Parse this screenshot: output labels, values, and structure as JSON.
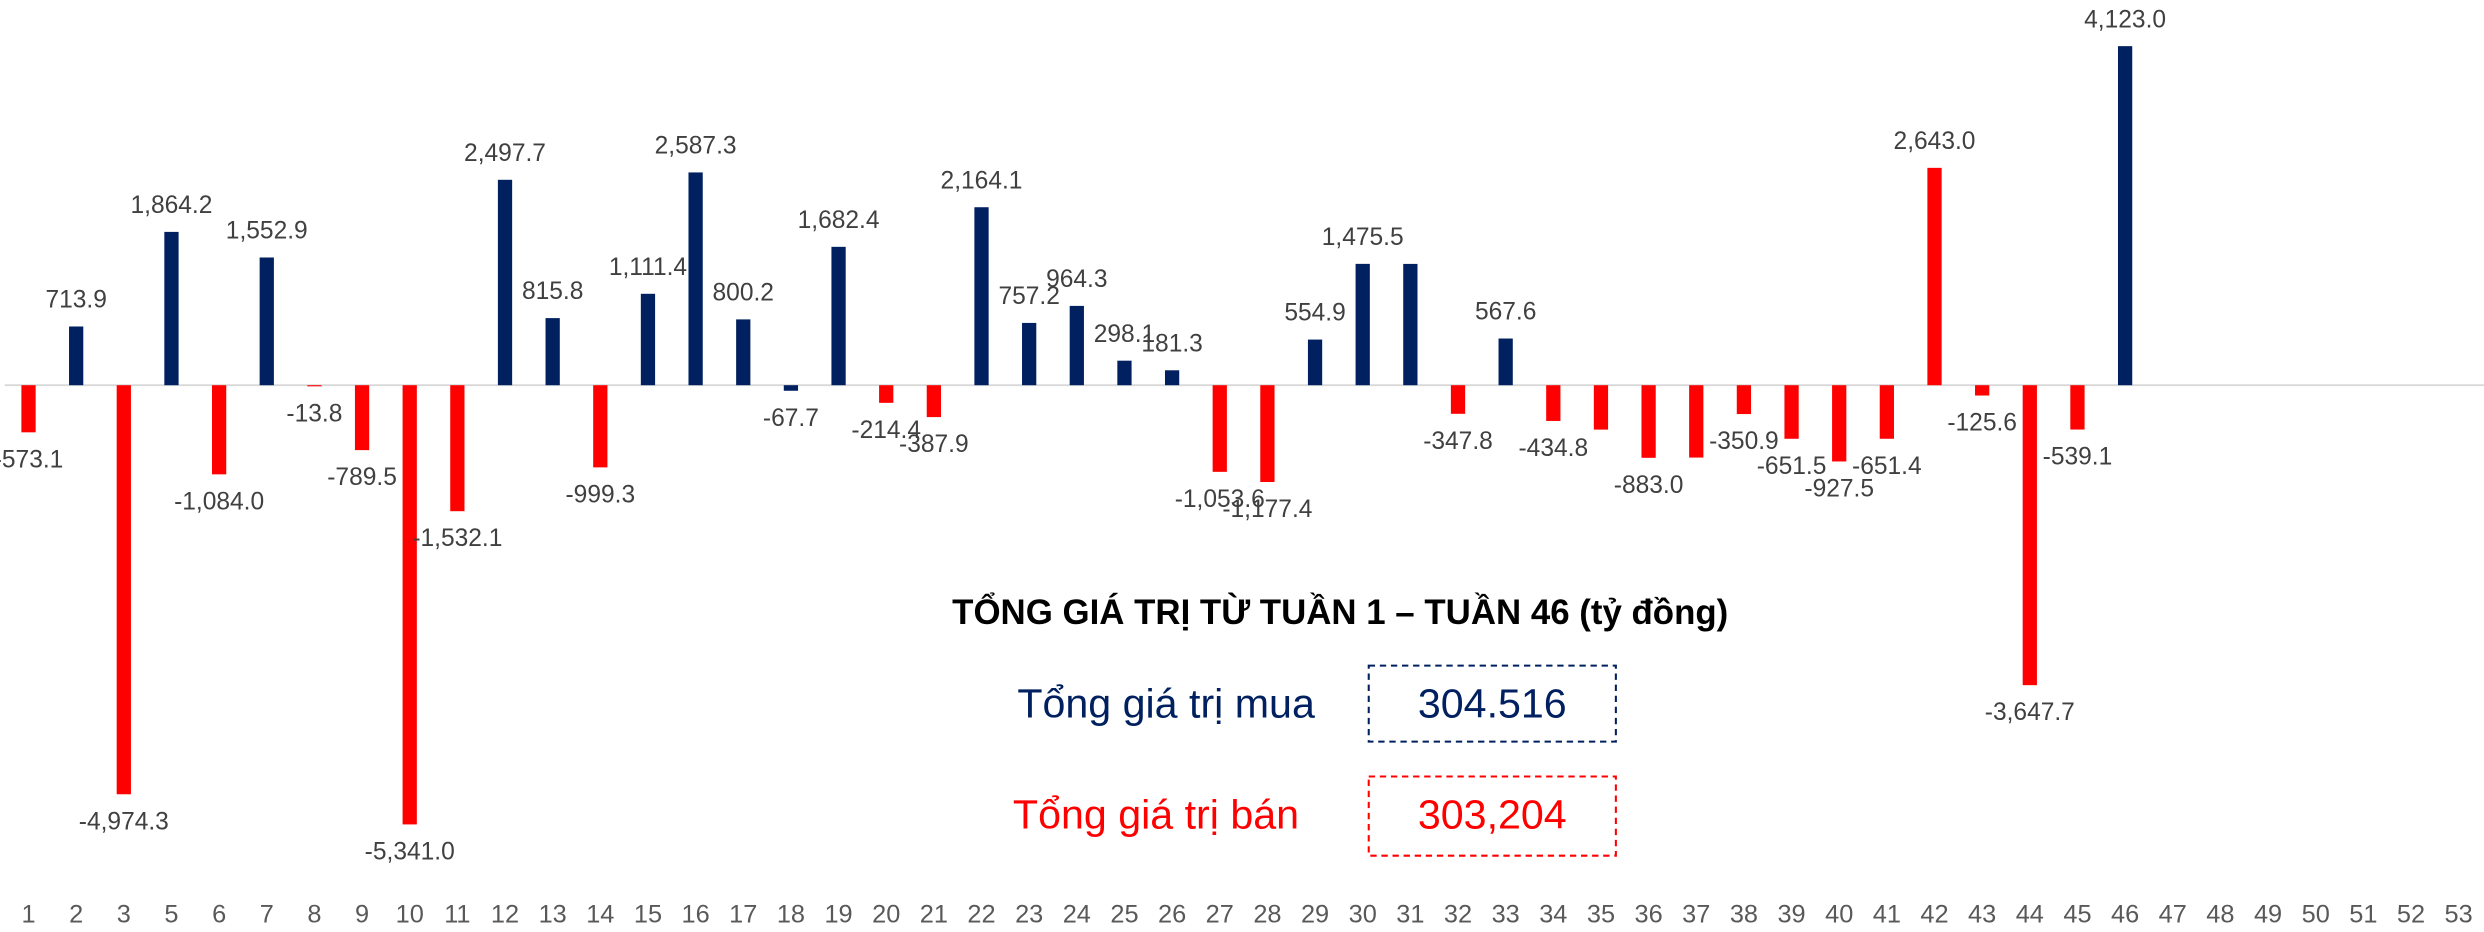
{
  "chart_data": {
    "type": "bar",
    "categories": [
      "1",
      "2",
      "3",
      "5",
      "6",
      "7",
      "8",
      "9",
      "10",
      "11",
      "12",
      "13",
      "14",
      "15",
      "16",
      "17",
      "18",
      "19",
      "20",
      "21",
      "22",
      "23",
      "24",
      "25",
      "26",
      "27",
      "28",
      "29",
      "30",
      "31",
      "32",
      "33",
      "34",
      "35",
      "36",
      "37",
      "38",
      "39",
      "40",
      "41",
      "42",
      "43",
      "44",
      "45",
      "46",
      "47",
      "48",
      "49",
      "50",
      "51",
      "52",
      "53"
    ],
    "values": [
      -573.1,
      713.9,
      -4974.3,
      1864.2,
      -1084.0,
      1552.9,
      -13.8,
      -789.5,
      -5341.0,
      -1532.1,
      2497.7,
      815.8,
      -999.3,
      1111.4,
      2587.3,
      800.2,
      -67.7,
      1682.4,
      -214.4,
      -387.9,
      2164.1,
      757.2,
      964.3,
      298.1,
      181.3,
      -1053.6,
      -1177.4,
      554.9,
      1475.5,
      1475,
      -347.8,
      567.6,
      -434.8,
      -540,
      -883.0,
      -880,
      -350.9,
      -651.5,
      -927.5,
      -651.4,
      2643.0,
      -125.6,
      -3647.7,
      -539.1,
      4123.0,
      null,
      null,
      null,
      null,
      null,
      null,
      null
    ],
    "value_labels": [
      "-573.1",
      "713.9",
      "-4,974.3",
      "1,864.2",
      "-1,084.0",
      "1,552.9",
      "-13.8",
      "-789.5",
      "-5,341.0",
      "-1,532.1",
      "2,497.7",
      "815.8",
      "-999.3",
      "1,111.4",
      "2,587.3",
      "800.2",
      "-67.7",
      "1,682.4",
      "-214.4",
      "-387.9",
      "2,164.1",
      "757.2",
      "964.3",
      "298.1",
      "181.3",
      "-1,053.6",
      "-1,177.4",
      "554.9",
      "1,475.5",
      null,
      "-347.8",
      "567.6",
      "-434.8",
      null,
      "-883.0",
      null,
      "-350.9",
      "-651.5",
      "-927.5",
      "-651.4",
      "2,643.0",
      "-125.6",
      "-3,647.7",
      "-539.1",
      "4,123.0",
      null,
      null,
      null,
      null,
      null,
      null,
      null
    ],
    "colors": [
      "#ff0000",
      "#002060",
      "#ff0000",
      "#002060",
      "#ff0000",
      "#002060",
      "#ff0000",
      "#ff0000",
      "#ff0000",
      "#ff0000",
      "#002060",
      "#002060",
      "#ff0000",
      "#002060",
      "#002060",
      "#002060",
      "#002060",
      "#002060",
      "#ff0000",
      "#ff0000",
      "#002060",
      "#002060",
      "#002060",
      "#002060",
      "#002060",
      "#ff0000",
      "#ff0000",
      "#002060",
      "#002060",
      "#002060",
      "#ff0000",
      "#002060",
      "#ff0000",
      "#ff0000",
      "#ff0000",
      "#ff0000",
      "#ff0000",
      "#ff0000",
      "#ff0000",
      "#ff0000",
      "#ff0000",
      "#ff0000",
      "#ff0000",
      "#ff0000",
      "#002060",
      null,
      null,
      null,
      null,
      null,
      null,
      null
    ],
    "ylim": [
      -5500,
      4500
    ],
    "summary": {
      "title": "TỔNG GIÁ TRỊ TỪ TUẦN 1 – TUẦN 46 (tỷ đồng)",
      "buy_label": "Tổng giá trị mua",
      "buy_value": "304.516",
      "buy_color": "#002060",
      "sell_label": "Tổng giá trị bán",
      "sell_value": "303,204",
      "sell_color": "#ff0000"
    }
  }
}
